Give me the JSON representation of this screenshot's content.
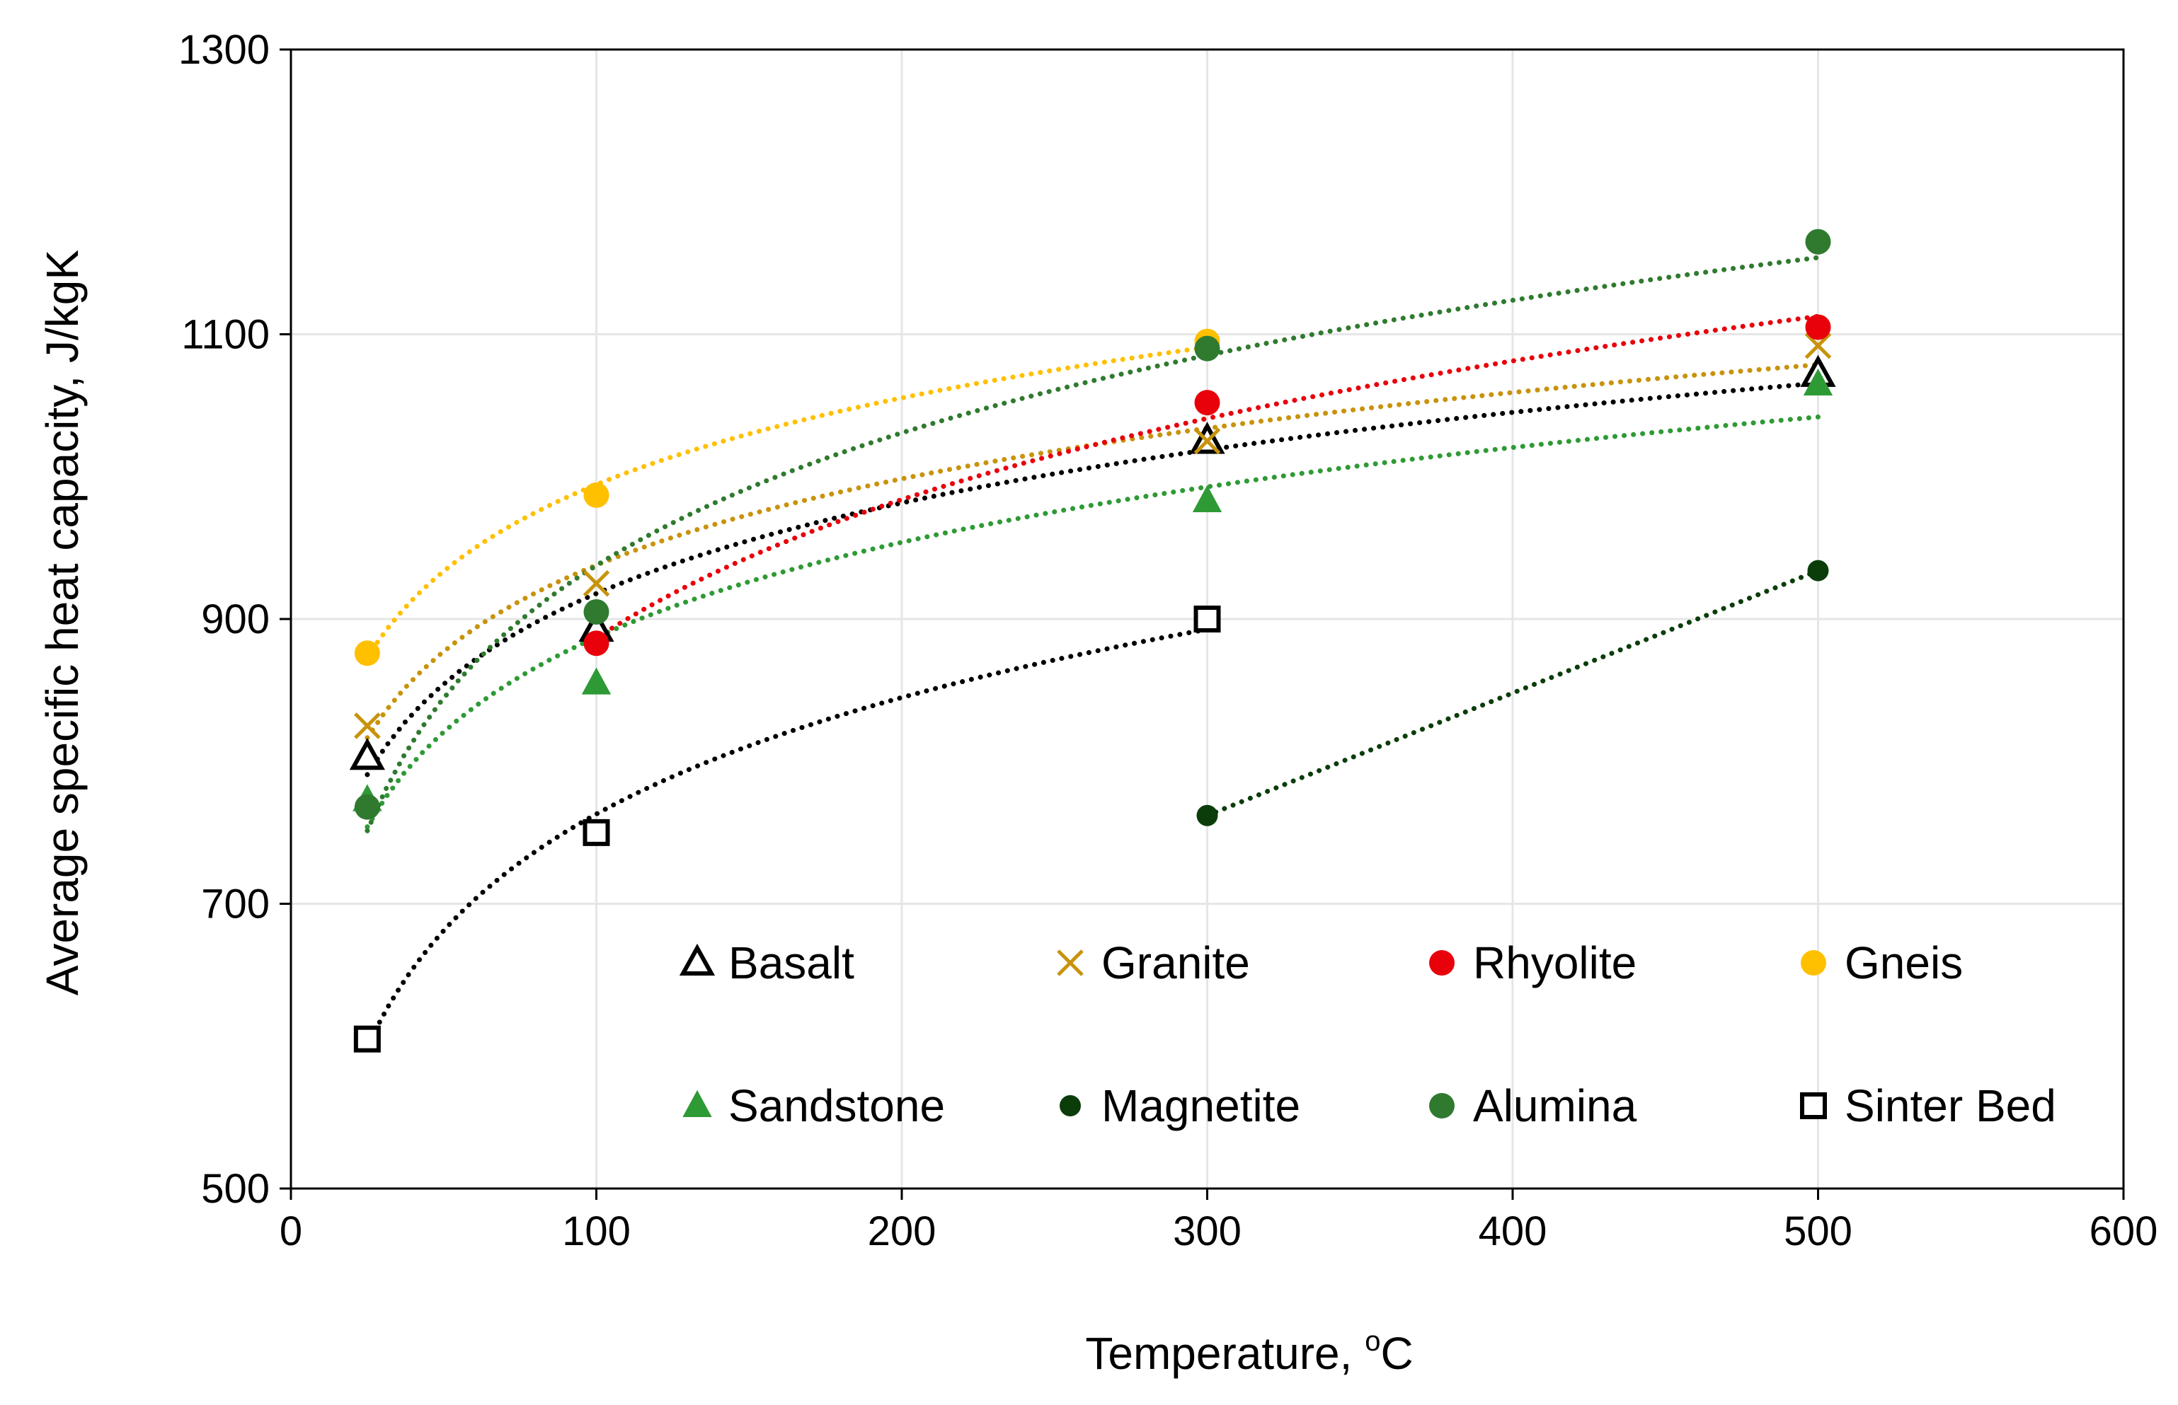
{
  "chart_data": {
    "type": "scatter",
    "title": "",
    "xlabel": "Temperature, ",
    "xlabel_sup": "o",
    "xlabel_unit": "C",
    "ylabel": "Average specific heat capacity, J/kgK",
    "xlim": [
      0,
      600
    ],
    "ylim": [
      500,
      1300
    ],
    "x_ticks": [
      0,
      100,
      200,
      300,
      400,
      500,
      600
    ],
    "y_ticks": [
      500,
      700,
      900,
      1100,
      1300
    ],
    "x_tick_labels": [
      "0",
      "100",
      "200",
      "300",
      "400",
      "500",
      "600"
    ],
    "y_tick_labels": [
      "500",
      "700",
      "900",
      "1100",
      "1300"
    ],
    "grid": true,
    "legend_position": "bottom-right inside",
    "trendline_style": "dotted",
    "series": [
      {
        "name": "Basalt",
        "marker": "triangle-open",
        "color": "#000000",
        "x": [
          25,
          100,
          300,
          500
        ],
        "y": [
          803,
          893,
          1025,
          1072
        ]
      },
      {
        "name": "Granite",
        "marker": "x",
        "color": "#C8930C",
        "x": [
          25,
          100,
          300,
          500
        ],
        "y": [
          825,
          925,
          1025,
          1092
        ]
      },
      {
        "name": "Rhyolite",
        "marker": "circle",
        "color": "#E8000B",
        "x": [
          100,
          300,
          500
        ],
        "y": [
          883,
          1052,
          1105
        ]
      },
      {
        "name": "Gneis",
        "marker": "circle",
        "color": "#FFC000",
        "x": [
          25,
          100,
          300
        ],
        "y": [
          876,
          987,
          1095
        ]
      },
      {
        "name": "Sandstone",
        "marker": "triangle",
        "color": "#2E9A35",
        "x": [
          25,
          100,
          300,
          500
        ],
        "y": [
          773,
          855,
          983,
          1065
        ]
      },
      {
        "name": "Magnetite",
        "marker": "circle-small",
        "color": "#0B3D0B",
        "x": [
          300,
          500
        ],
        "y": [
          762,
          934
        ]
      },
      {
        "name": "Alumina",
        "marker": "circle",
        "color": "#2F7A2F",
        "x": [
          25,
          100,
          300,
          500
        ],
        "y": [
          768,
          905,
          1090,
          1165
        ]
      },
      {
        "name": "Sinter Bed",
        "marker": "square-open",
        "color": "#000000",
        "x": [
          25,
          100,
          300
        ],
        "y": [
          605,
          750,
          900
        ]
      }
    ]
  }
}
